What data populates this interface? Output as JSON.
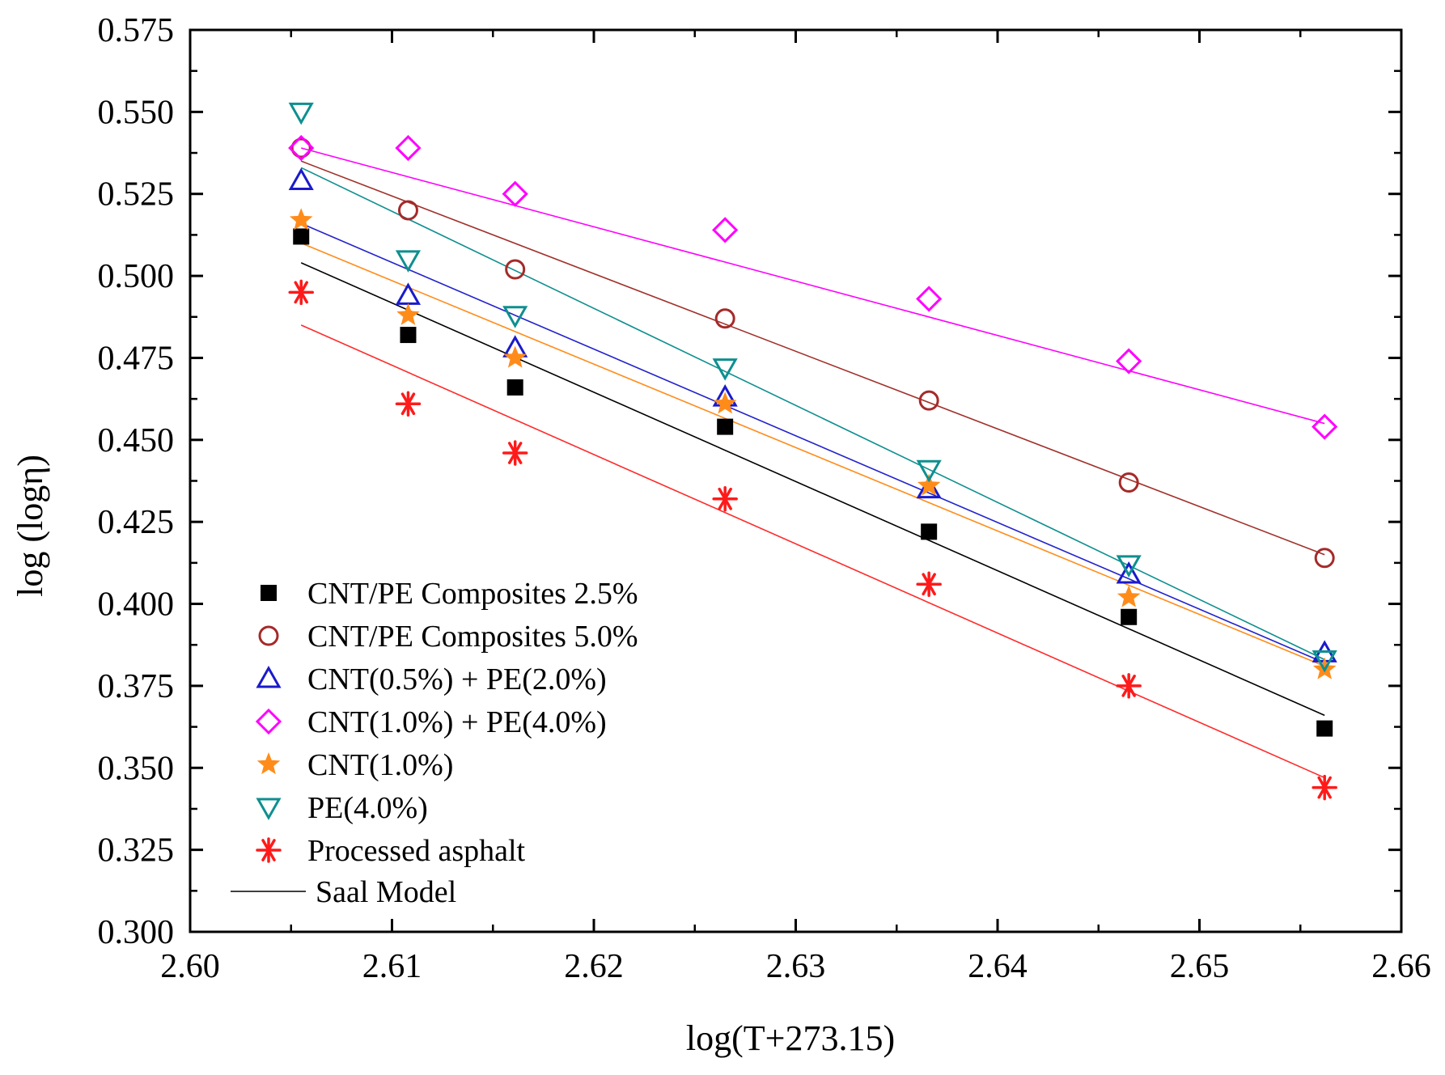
{
  "chart_data": {
    "type": "scatter",
    "title": "",
    "xlabel": "log(T+273.15)",
    "ylabel": "log (logη)",
    "xlim": [
      2.6,
      2.66
    ],
    "ylim": [
      0.3,
      0.575
    ],
    "xticks": [
      "2.60",
      "2.61",
      "2.62",
      "2.63",
      "2.64",
      "2.65",
      "2.66"
    ],
    "xtick_values": [
      2.6,
      2.61,
      2.62,
      2.63,
      2.64,
      2.65,
      2.66
    ],
    "yticks": [
      "0.300",
      "0.325",
      "0.350",
      "0.375",
      "0.400",
      "0.425",
      "0.450",
      "0.475",
      "0.500",
      "0.525",
      "0.550",
      "0.575"
    ],
    "ytick_values": [
      0.3,
      0.325,
      0.35,
      0.375,
      0.4,
      0.425,
      0.45,
      0.475,
      0.5,
      0.525,
      0.55,
      0.575
    ],
    "grid": false,
    "legend_position": "bottom-left",
    "x": [
      2.6055,
      2.6108,
      2.6161,
      2.6265,
      2.6366,
      2.6465,
      2.6562
    ],
    "series": [
      {
        "name": "CNT/PE Composites 2.5%",
        "marker": "filled-square",
        "color": "#000000",
        "line_color": "#000000",
        "values": [
          0.512,
          0.482,
          0.466,
          0.454,
          0.422,
          0.396,
          0.362
        ],
        "fit": [
          0.504,
          0.366
        ]
      },
      {
        "name": "CNT/PE Composites 5.0%",
        "marker": "open-circle",
        "color": "#a52a2a",
        "line_color": "#a0302a",
        "values": [
          0.539,
          0.52,
          0.502,
          0.487,
          0.462,
          0.437,
          0.414
        ],
        "fit": [
          0.535,
          0.415
        ]
      },
      {
        "name": "CNT(0.5%) + PE(2.0%)",
        "marker": "open-triangle-up",
        "color": "#1a1acc",
        "line_color": "#2222cc",
        "values": [
          0.529,
          0.494,
          0.478,
          0.463,
          0.435,
          0.409,
          0.385
        ],
        "fit": [
          0.516,
          0.382
        ]
      },
      {
        "name": "CNT(1.0%) + PE(4.0%)",
        "marker": "open-diamond",
        "color": "#ff00ff",
        "line_color": "#ff00ff",
        "values": [
          0.539,
          0.539,
          0.525,
          0.514,
          0.493,
          0.474,
          0.454
        ],
        "fit": [
          0.539,
          0.455
        ]
      },
      {
        "name": "CNT(1.0%)",
        "marker": "filled-star",
        "color": "#ff8c1a",
        "line_color": "#ff8c1a",
        "values": [
          0.517,
          0.488,
          0.475,
          0.461,
          0.436,
          0.402,
          0.38
        ],
        "fit": [
          0.51,
          0.381
        ]
      },
      {
        "name": "PE(4.0%)",
        "marker": "open-triangle-down",
        "color": "#0f8f8f",
        "line_color": "#0f8f8f",
        "values": [
          0.55,
          0.505,
          0.488,
          0.472,
          0.441,
          0.412,
          0.383
        ],
        "fit": [
          0.533,
          0.383
        ]
      },
      {
        "name": "Processed asphalt",
        "marker": "asterisk",
        "color": "#ff1a1a",
        "line_color": "#ff2a2a",
        "values": [
          0.495,
          0.461,
          0.446,
          0.432,
          0.406,
          0.375,
          0.344
        ],
        "fit": [
          0.485,
          0.347
        ]
      }
    ],
    "fit_line_label": "Saal Model"
  }
}
